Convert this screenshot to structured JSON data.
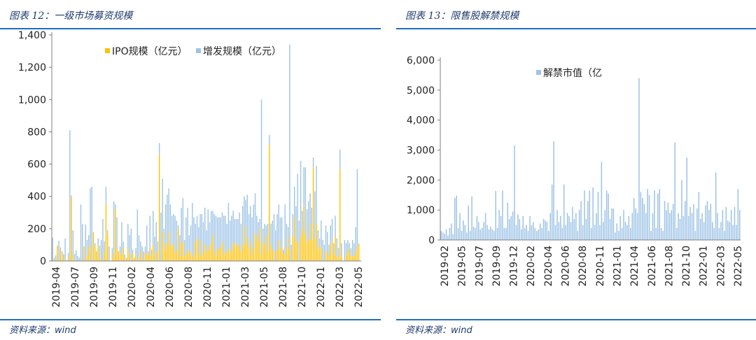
{
  "left": {
    "title": "图表 12：一级市场募资规模",
    "source_label": "资料来源：",
    "source_value": "wind"
  },
  "right": {
    "title": "图表 13：限售股解禁规模",
    "source_label": "资料来源：",
    "source_value": "wind"
  },
  "chart_data": [
    {
      "type": "bar",
      "stacked": true,
      "title": "",
      "ylim": [
        0,
        1400
      ],
      "yticks": [
        0,
        200,
        400,
        600,
        800,
        1000,
        1200,
        1400
      ],
      "ytick_labels": [
        "0",
        "200",
        "400",
        "600",
        "800",
        "1,000",
        "1,200",
        "1,400"
      ],
      "xtick_labels": [
        "2019-04",
        "2019-07",
        "2019-09",
        "2019-11",
        "2020-02",
        "2020-04",
        "2020-06",
        "2020-08",
        "2020-11",
        "2021-01",
        "2021-03",
        "2021-05",
        "2021-08",
        "2021-10",
        "2022-01",
        "2022-03",
        "2022-05"
      ],
      "legend_position": "top-center",
      "colors": {
        "ipo": "#ffc000",
        "seo": "#9dc3e6"
      },
      "series": [
        {
          "name": "IPO规模（亿元）",
          "values": [
            10,
            0,
            5,
            95,
            5,
            70,
            10,
            40,
            0,
            5,
            30,
            0,
            395,
            40,
            5,
            5,
            0,
            0,
            0,
            0,
            90,
            5,
            30,
            80,
            100,
            0,
            180,
            90,
            60,
            100,
            15,
            10,
            0,
            60,
            350,
            170,
            0,
            0,
            50,
            20,
            320,
            80,
            60,
            40,
            40,
            80,
            10,
            20,
            80,
            40,
            0,
            50,
            20,
            40,
            0,
            20,
            60,
            20,
            0,
            50,
            40,
            40,
            80,
            30,
            100,
            50,
            0,
            60,
            660,
            0,
            180,
            110,
            70,
            110,
            180,
            100,
            90,
            110,
            50,
            70,
            200,
            30,
            110,
            120,
            30,
            40,
            70,
            60,
            50,
            20,
            40,
            120,
            140,
            40,
            130,
            30,
            60,
            100,
            50,
            90,
            70,
            110,
            160,
            60,
            30,
            80,
            70,
            90,
            120,
            40,
            60,
            50,
            80,
            70,
            50,
            110,
            110,
            100,
            80,
            100,
            60,
            100,
            220,
            100,
            150,
            80,
            120,
            40,
            80,
            170,
            150,
            120,
            200,
            40,
            120,
            100,
            160,
            60,
            720,
            100,
            70,
            60,
            0,
            70,
            130,
            70,
            90,
            50,
            40,
            80,
            150,
            70,
            0,
            160,
            270,
            120,
            120,
            0,
            150,
            200,
            340,
            170,
            120,
            130,
            230,
            130,
            580,
            140,
            230,
            70,
            100,
            80,
            0,
            0,
            60,
            50,
            30,
            100,
            120,
            40,
            150,
            30,
            20,
            570,
            30,
            0,
            0,
            40,
            50,
            80,
            30,
            30,
            30,
            60,
            90,
            110,
            0
          ]
        },
        {
          "name": "增发规模（亿元）",
          "values": [
            135,
            20,
            30,
            0,
            120,
            15,
            50,
            5,
            140,
            0,
            20,
            810,
            10,
            150,
            40,
            60,
            30,
            20,
            350,
            230,
            0,
            220,
            100,
            80,
            350,
            460,
            0,
            20,
            0,
            40,
            80,
            120,
            260,
            60,
            110,
            20,
            90,
            0,
            30,
            350,
            30,
            190,
            0,
            50,
            200,
            40,
            30,
            0,
            150,
            120,
            200,
            20,
            0,
            40,
            320,
            140,
            60,
            70,
            60,
            40,
            180,
            20,
            200,
            40,
            210,
            100,
            240,
            60,
            70,
            300,
            330,
            90,
            280,
            300,
            270,
            250,
            190,
            180,
            230,
            180,
            20,
            130,
            220,
            270,
            100,
            230,
            260,
            100,
            170,
            340,
            230,
            110,
            140,
            170,
            160,
            260,
            180,
            230,
            140,
            230,
            170,
            200,
            150,
            230,
            250,
            190,
            200,
            180,
            180,
            240,
            220,
            180,
            280,
            180,
            230,
            200,
            150,
            160,
            180,
            200,
            170,
            240,
            180,
            280,
            260,
            210,
            220,
            230,
            270,
            250,
            130,
            120,
            60,
            960,
            80,
            130,
            60,
            170,
            60,
            130,
            180,
            230,
            190,
            220,
            220,
            200,
            180,
            20,
            310,
            150,
            60,
            1270,
            100,
            130,
            190,
            220,
            420,
            250,
            470,
            110,
            240,
            410,
            200,
            240,
            190,
            200,
            60,
            290,
            360,
            120,
            40,
            170,
            130,
            100,
            160,
            130,
            70,
            120,
            140,
            70,
            130,
            110,
            60,
            120,
            80,
            0,
            130,
            70,
            80,
            30,
            50,
            100,
            80,
            150,
            480
          ]
        }
      ]
    },
    {
      "type": "bar",
      "title": "",
      "ylim": [
        0,
        6000
      ],
      "yticks": [
        0,
        1000,
        2000,
        3000,
        4000,
        5000,
        6000
      ],
      "ytick_labels": [
        "0",
        "1,000",
        "2,000",
        "3,000",
        "4,000",
        "5,000",
        "6,000"
      ],
      "xtick_labels": [
        "2019-02",
        "2019-05",
        "2019-07",
        "2019-09",
        "2019-12",
        "2020-02",
        "2020-04",
        "2020-06",
        "2020-08",
        "2020-11",
        "2021-01",
        "2021-04",
        "2021-06",
        "2021-08",
        "2021-10",
        "2022-01",
        "2022-03",
        "2022-05"
      ],
      "legend_position": "top-center",
      "colors": {
        "unlock": "#9dc3e6"
      },
      "series": [
        {
          "name": "解禁市值（亿",
          "values": [
            300,
            250,
            200,
            350,
            150,
            400,
            550,
            200,
            1400,
            1480,
            400,
            900,
            300,
            650,
            500,
            250,
            1150,
            300,
            1450,
            450,
            400,
            800,
            600,
            350,
            400,
            600,
            900,
            500,
            350,
            450,
            350,
            300,
            1640,
            400,
            1000,
            800,
            1650,
            400,
            400,
            1250,
            700,
            800,
            950,
            3150,
            500,
            850,
            700,
            350,
            800,
            400,
            500,
            300,
            800,
            500,
            600,
            400,
            300,
            350,
            550,
            400,
            700,
            650,
            600,
            300,
            900,
            1850,
            3300,
            500,
            1000,
            600,
            800,
            400,
            1850,
            500,
            900,
            800,
            600,
            1100,
            700,
            900,
            300,
            1000,
            1300,
            500,
            1650,
            700,
            1300,
            1650,
            400,
            1750,
            500,
            900,
            1600,
            500,
            2600,
            600,
            1000,
            1650,
            1550,
            700,
            1050,
            1050,
            250,
            550,
            300,
            800,
            400,
            1000,
            600,
            500,
            800,
            400,
            900,
            1400,
            1050,
            900,
            5400,
            1600,
            1400,
            1200,
            900,
            1700,
            1500,
            300,
            900,
            1650,
            400,
            1550,
            1700,
            400,
            300,
            1300,
            1000,
            1250,
            900,
            1000,
            1200,
            3250,
            400,
            900,
            700,
            2000,
            800,
            1300,
            2750,
            800,
            1100,
            900,
            1200,
            300,
            1050,
            1600,
            700,
            900,
            600,
            1150,
            1300,
            1000,
            1200,
            600,
            400,
            2250,
            900,
            400,
            600,
            1000,
            300,
            1100,
            650,
            600,
            1000,
            500,
            1100,
            500,
            1700,
            1000
          ]
        }
      ]
    }
  ]
}
